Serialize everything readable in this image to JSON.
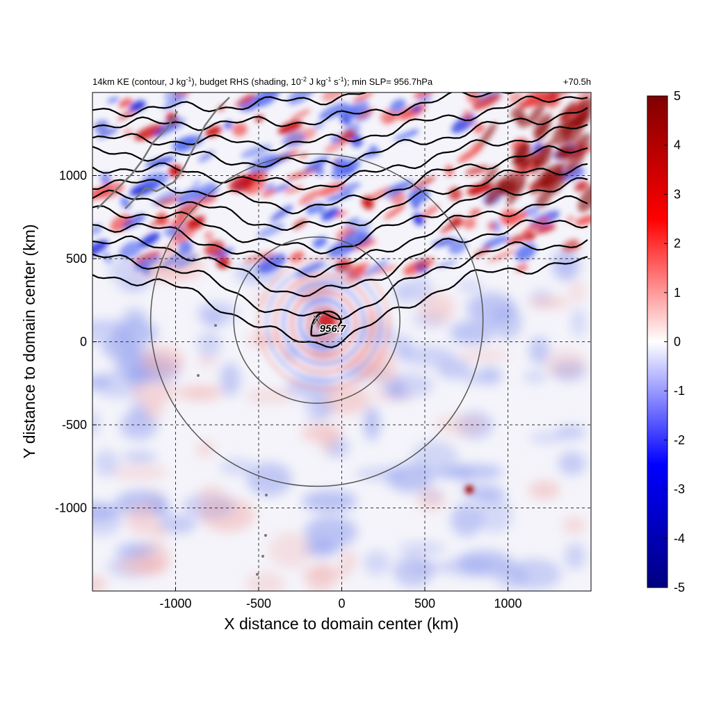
{
  "chart_data": {
    "type": "heatmap",
    "title_parts": {
      "p1": "14km KE (contour, J kg",
      "p2": "-1",
      "p3": "), budget RHS (shading, 10",
      "p4": "-2",
      "p5": " J kg",
      "p6": "-1",
      "p7": " s",
      "p8": "-1",
      "p9": "); min SLP= 956.7hPa"
    },
    "time_label": "+70.5h",
    "xlabel": "X distance to domain center (km)",
    "ylabel": "Y distance to domain center (km)",
    "xlim": [
      -1500,
      1500
    ],
    "ylim": [
      -1500,
      1500
    ],
    "x_ticks": [
      {
        "value": -1000,
        "label": "-1000"
      },
      {
        "value": -500,
        "label": "-500"
      },
      {
        "value": 0,
        "label": "0"
      },
      {
        "value": 500,
        "label": "500"
      },
      {
        "value": 1000,
        "label": "1000"
      }
    ],
    "y_ticks": [
      {
        "value": 1000,
        "label": "1000"
      },
      {
        "value": 500,
        "label": "500"
      },
      {
        "value": 0,
        "label": "0"
      },
      {
        "value": -500,
        "label": "-500"
      },
      {
        "value": -1000,
        "label": "-1000"
      }
    ],
    "grid": true,
    "colorbar": {
      "min": -5,
      "max": 5,
      "ticks": [
        {
          "value": 5,
          "label": "5"
        },
        {
          "value": 4,
          "label": "4"
        },
        {
          "value": 3,
          "label": "3"
        },
        {
          "value": 2,
          "label": "2"
        },
        {
          "value": 1,
          "label": "1"
        },
        {
          "value": 0,
          "label": "0"
        },
        {
          "value": -1,
          "label": "-1"
        },
        {
          "value": -2,
          "label": "-2"
        },
        {
          "value": -3,
          "label": "-3"
        },
        {
          "value": -4,
          "label": "-4"
        },
        {
          "value": -5,
          "label": "-5"
        }
      ],
      "colors": [
        "#000080",
        "#0000ff",
        "#ffffff",
        "#ff0000",
        "#800000"
      ]
    },
    "storm_center": {
      "x": -150,
      "y": 130,
      "marker": "X",
      "label": "956.7"
    },
    "range_circles_km": [
      {
        "center_x": -150,
        "center_y": 130,
        "radius": 500
      },
      {
        "center_x": -150,
        "center_y": 130,
        "radius": 1000
      }
    ]
  }
}
